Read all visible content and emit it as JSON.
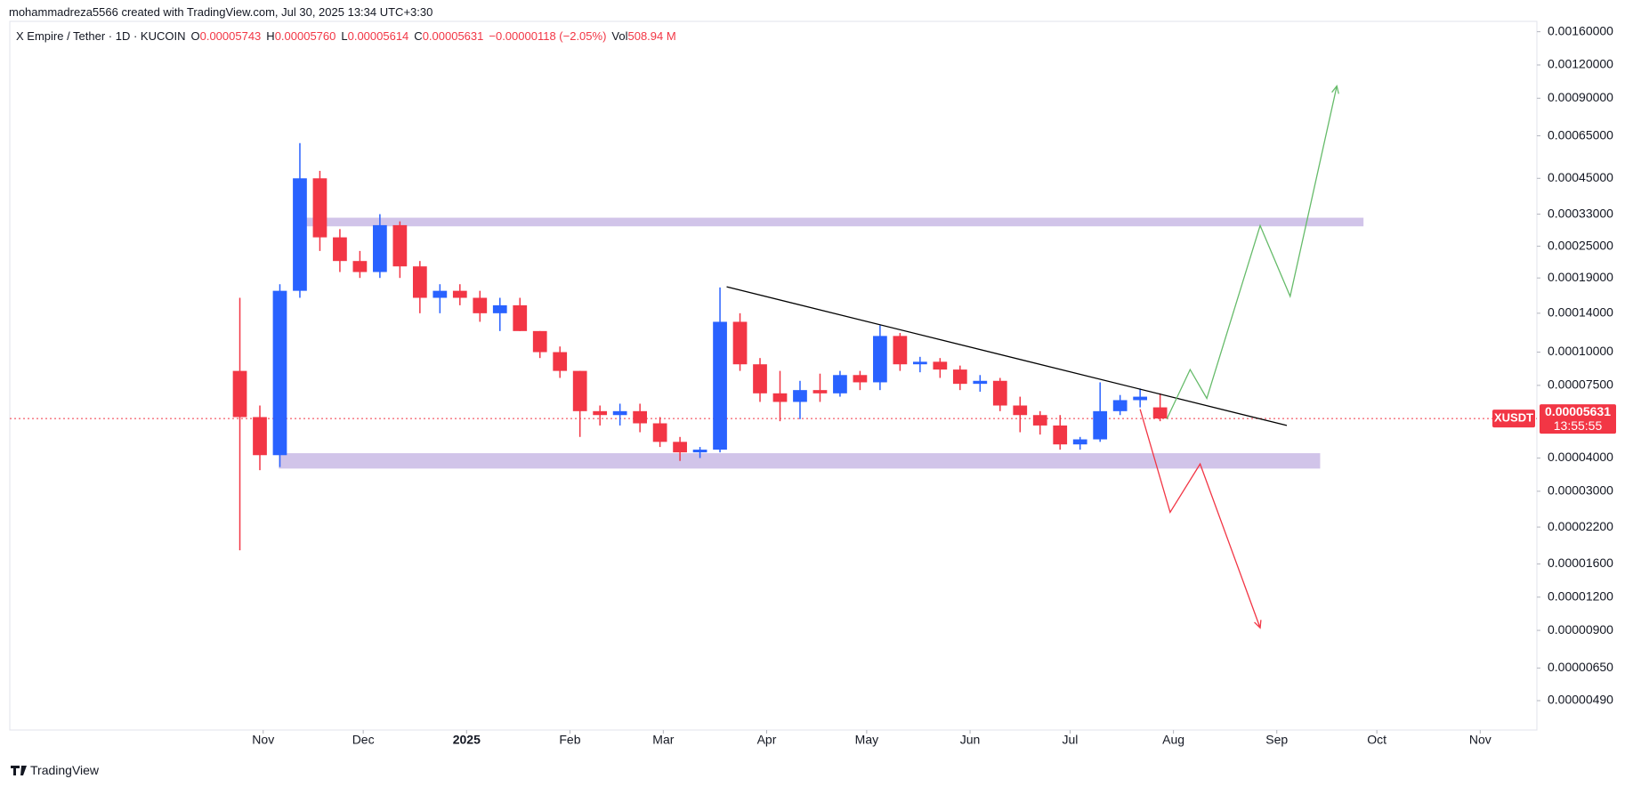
{
  "header": "mohammadreza5566 created with TradingView.com, Jul 30, 2025 13:34 UTC+3:30",
  "legend": {
    "title": "X Empire / Tether · 1D · KUCOIN",
    "items": [
      {
        "key": "O",
        "value": "0.00005743"
      },
      {
        "key": "H",
        "value": "0.00005760"
      },
      {
        "key": "L",
        "value": "0.00005614"
      },
      {
        "key": "C",
        "value": "0.00005631"
      }
    ],
    "change": "−0.00000118 (−2.05%)",
    "vol_key": "Vol",
    "vol_value": "508.94 M"
  },
  "footer": "TradingView",
  "chart_data": {
    "type": "candlestick",
    "log_scale": true,
    "xlim": [
      -76,
      382
    ],
    "xticks": [
      {
        "value": 0,
        "label": "Nov"
      },
      {
        "value": 30,
        "label": "Dec"
      },
      {
        "value": 61,
        "label": "2025"
      },
      {
        "value": 92,
        "label": "Feb"
      },
      {
        "value": 120,
        "label": "Mar"
      },
      {
        "value": 151,
        "label": "Apr"
      },
      {
        "value": 181,
        "label": "May"
      },
      {
        "value": 212,
        "label": "Jun"
      },
      {
        "value": 242,
        "label": "Jul"
      },
      {
        "value": 273,
        "label": "Aug"
      },
      {
        "value": 304,
        "label": "Sep"
      },
      {
        "value": 334,
        "label": "Oct"
      },
      {
        "value": 365,
        "label": "Nov"
      }
    ],
    "ylim": [
      3.8e-06,
      0.00175
    ],
    "yticks": [
      {
        "value": 0.0016,
        "label": "0.00160000"
      },
      {
        "value": 0.0012,
        "label": "0.00120000"
      },
      {
        "value": 0.0009,
        "label": "0.00090000"
      },
      {
        "value": 0.00065,
        "label": "0.00065000"
      },
      {
        "value": 0.00045,
        "label": "0.00045000"
      },
      {
        "value": 0.00033,
        "label": "0.00033000"
      },
      {
        "value": 0.00025,
        "label": "0.00025000"
      },
      {
        "value": 0.00019,
        "label": "0.00019000"
      },
      {
        "value": 0.00014,
        "label": "0.00014000"
      },
      {
        "value": 0.0001,
        "label": "0.00010000"
      },
      {
        "value": 7.5e-05,
        "label": "0.00007500"
      },
      {
        "value": 4e-05,
        "label": "0.00004000"
      },
      {
        "value": 3e-05,
        "label": "0.00003000"
      },
      {
        "value": 2.2e-05,
        "label": "0.00002200"
      },
      {
        "value": 1.6e-05,
        "label": "0.00001600"
      },
      {
        "value": 1.2e-05,
        "label": "0.00001200"
      },
      {
        "value": 9e-06,
        "label": "0.00000900"
      },
      {
        "value": 6.5e-06,
        "label": "0.00000650"
      },
      {
        "value": 4.9e-06,
        "label": "0.00000490"
      }
    ],
    "up_color": "#2962ff",
    "down_color": "#f23645",
    "x": [
      -7,
      -1,
      5,
      11,
      17,
      23,
      29,
      35,
      41,
      47,
      53,
      59,
      65,
      71,
      77,
      83,
      89,
      95,
      101,
      107,
      113,
      119,
      125,
      131,
      137,
      143,
      149,
      155,
      161,
      167,
      173,
      179,
      185,
      191,
      197,
      203,
      209,
      215,
      221,
      227,
      233,
      239,
      245,
      251,
      257,
      263,
      269
    ],
    "open": [
      8.5e-05,
      5.7e-05,
      4.1e-05,
      0.00017,
      0.00045,
      0.00027,
      0.00022,
      0.0002,
      0.0003,
      0.00021,
      0.00016,
      0.00017,
      0.00016,
      0.00014,
      0.00015,
      0.00012,
      0.0001,
      8.5e-05,
      6e-05,
      5.8e-05,
      6e-05,
      5.4e-05,
      4.6e-05,
      4.2e-05,
      4.3e-05,
      0.00013,
      9e-05,
      7e-05,
      6.5e-05,
      7.2e-05,
      7e-05,
      8.2e-05,
      7.7e-05,
      0.000115,
      9e-05,
      9.2e-05,
      8.6e-05,
      7.6e-05,
      7.8e-05,
      6.3e-05,
      5.8e-05,
      5.3e-05,
      4.5e-05,
      4.7e-05,
      6e-05,
      6.6e-05,
      6.2e-05
    ],
    "high": [
      0.00016,
      6.3e-05,
      0.00018,
      0.00061,
      0.00048,
      0.00029,
      0.00024,
      0.00033,
      0.00031,
      0.00022,
      0.00018,
      0.00018,
      0.00017,
      0.00016,
      0.00016,
      0.00012,
      0.000105,
      8.5e-05,
      6.3e-05,
      6.4e-05,
      6.4e-05,
      5.7e-05,
      4.8e-05,
      4.4e-05,
      0.000175,
      0.00014,
      9.5e-05,
      8.5e-05,
      7.8e-05,
      8.3e-05,
      8.5e-05,
      8.5e-05,
      0.000126,
      0.000118,
      9.6e-05,
      9.5e-05,
      8.9e-05,
      8.2e-05,
      8e-05,
      6.8e-05,
      6e-05,
      5.8e-05,
      4.8e-05,
      7.7e-05,
      6.9e-05,
      7.3e-05,
      7e-05
    ],
    "low": [
      1.8e-05,
      3.6e-05,
      3.7e-05,
      0.00016,
      0.00024,
      0.0002,
      0.00019,
      0.00019,
      0.00019,
      0.00014,
      0.00014,
      0.00015,
      0.00013,
      0.00012,
      0.00012,
      9.5e-05,
      8e-05,
      4.8e-05,
      5.3e-05,
      5.3e-05,
      5e-05,
      4.4e-05,
      3.9e-05,
      4e-05,
      4.2e-05,
      8.5e-05,
      6.5e-05,
      5.5e-05,
      5.6e-05,
      6.5e-05,
      6.8e-05,
      7.2e-05,
      7.2e-05,
      8.5e-05,
      8.4e-05,
      8e-05,
      7.2e-05,
      7.1e-05,
      6e-05,
      5e-05,
      4.9e-05,
      4.3e-05,
      4.3e-05,
      4.6e-05,
      5.8e-05,
      6.2e-05,
      5.5e-05
    ],
    "close": [
      5.7e-05,
      4.1e-05,
      0.00017,
      0.00045,
      0.00027,
      0.00022,
      0.0002,
      0.0003,
      0.00021,
      0.00016,
      0.00017,
      0.00016,
      0.00014,
      0.00015,
      0.00012,
      0.0001,
      8.5e-05,
      6e-05,
      5.8e-05,
      6e-05,
      5.4e-05,
      4.6e-05,
      4.2e-05,
      4.3e-05,
      0.00013,
      9e-05,
      7e-05,
      6.5e-05,
      7.2e-05,
      7e-05,
      8.2e-05,
      7.7e-05,
      0.000115,
      9e-05,
      9.2e-05,
      8.6e-05,
      7.6e-05,
      7.8e-05,
      6.3e-05,
      5.8e-05,
      5.3e-05,
      4.5e-05,
      4.7e-05,
      6e-05,
      6.6e-05,
      6.8e-05,
      5.631e-05
    ],
    "last_price": {
      "value": 5.631e-05,
      "label": "0.00005631",
      "symbol": "XUSDT",
      "countdown": "13:55:55",
      "color": "#f23645"
    },
    "zones": [
      {
        "x": [
          12.5,
          330
        ],
        "y": [
          0.000297,
          0.00032
        ],
        "color": "#d1c4e9"
      },
      {
        "x": [
          4.7,
          317
        ],
        "y": [
          3.65e-05,
          4.17e-05
        ],
        "color": "#d1c4e9"
      }
    ],
    "lines": [
      {
        "x": [
          139,
          307
        ],
        "y": [
          0.000176,
          5.3e-05
        ],
        "color": "#000000",
        "arrow": false
      },
      {
        "x": [
          271,
          278,
          283,
          299,
          308,
          322
        ],
        "y": [
          5.6e-05,
          8.6e-05,
          6.7e-05,
          0.000299,
          0.000162,
          0.001
        ],
        "color": "#66bb6a",
        "arrow": true
      },
      {
        "x": [
          263,
          272,
          281,
          299
        ],
        "y": [
          6.1e-05,
          2.5e-05,
          3.8e-05,
          9.2e-06
        ],
        "color": "#f23645",
        "arrow": true
      }
    ]
  }
}
